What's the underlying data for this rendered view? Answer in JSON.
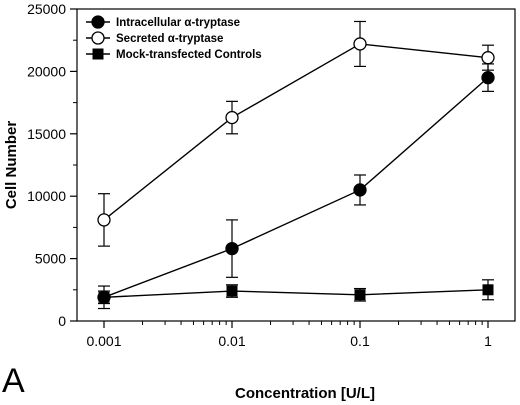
{
  "panel_label": "A",
  "chart_data": {
    "type": "line",
    "xlabel": "Concentration [U/L]",
    "ylabel": "Cell Number",
    "xscale": "log",
    "xlim": [
      0.001,
      1
    ],
    "ylim": [
      0,
      25000
    ],
    "x_ticks": [
      0.001,
      0.01,
      0.1,
      1
    ],
    "x_tick_labels": [
      "0.001",
      "0.01",
      "0.1",
      "1"
    ],
    "y_ticks": [
      0,
      5000,
      10000,
      15000,
      20000,
      25000
    ],
    "y_tick_labels": [
      "0",
      "5000",
      "10000",
      "15000",
      "20000",
      "25000"
    ],
    "grid": false,
    "legend_position": "top-left",
    "x": [
      0.001,
      0.01,
      0.1,
      1
    ],
    "series": [
      {
        "name": "Intracellular α-tryptase",
        "marker": "filled-circle",
        "values": [
          1900,
          5800,
          10500,
          19500
        ],
        "errors": [
          900,
          2300,
          1200,
          1100
        ]
      },
      {
        "name": "Secreted α-tryptase",
        "marker": "open-circle",
        "values": [
          8100,
          16300,
          22200,
          21100
        ],
        "errors": [
          2100,
          1300,
          1800,
          1000
        ]
      },
      {
        "name": "Mock-transfected Controls",
        "marker": "filled-square",
        "values": [
          1900,
          2400,
          2100,
          2500
        ],
        "errors": [
          500,
          500,
          500,
          800
        ]
      }
    ]
  }
}
